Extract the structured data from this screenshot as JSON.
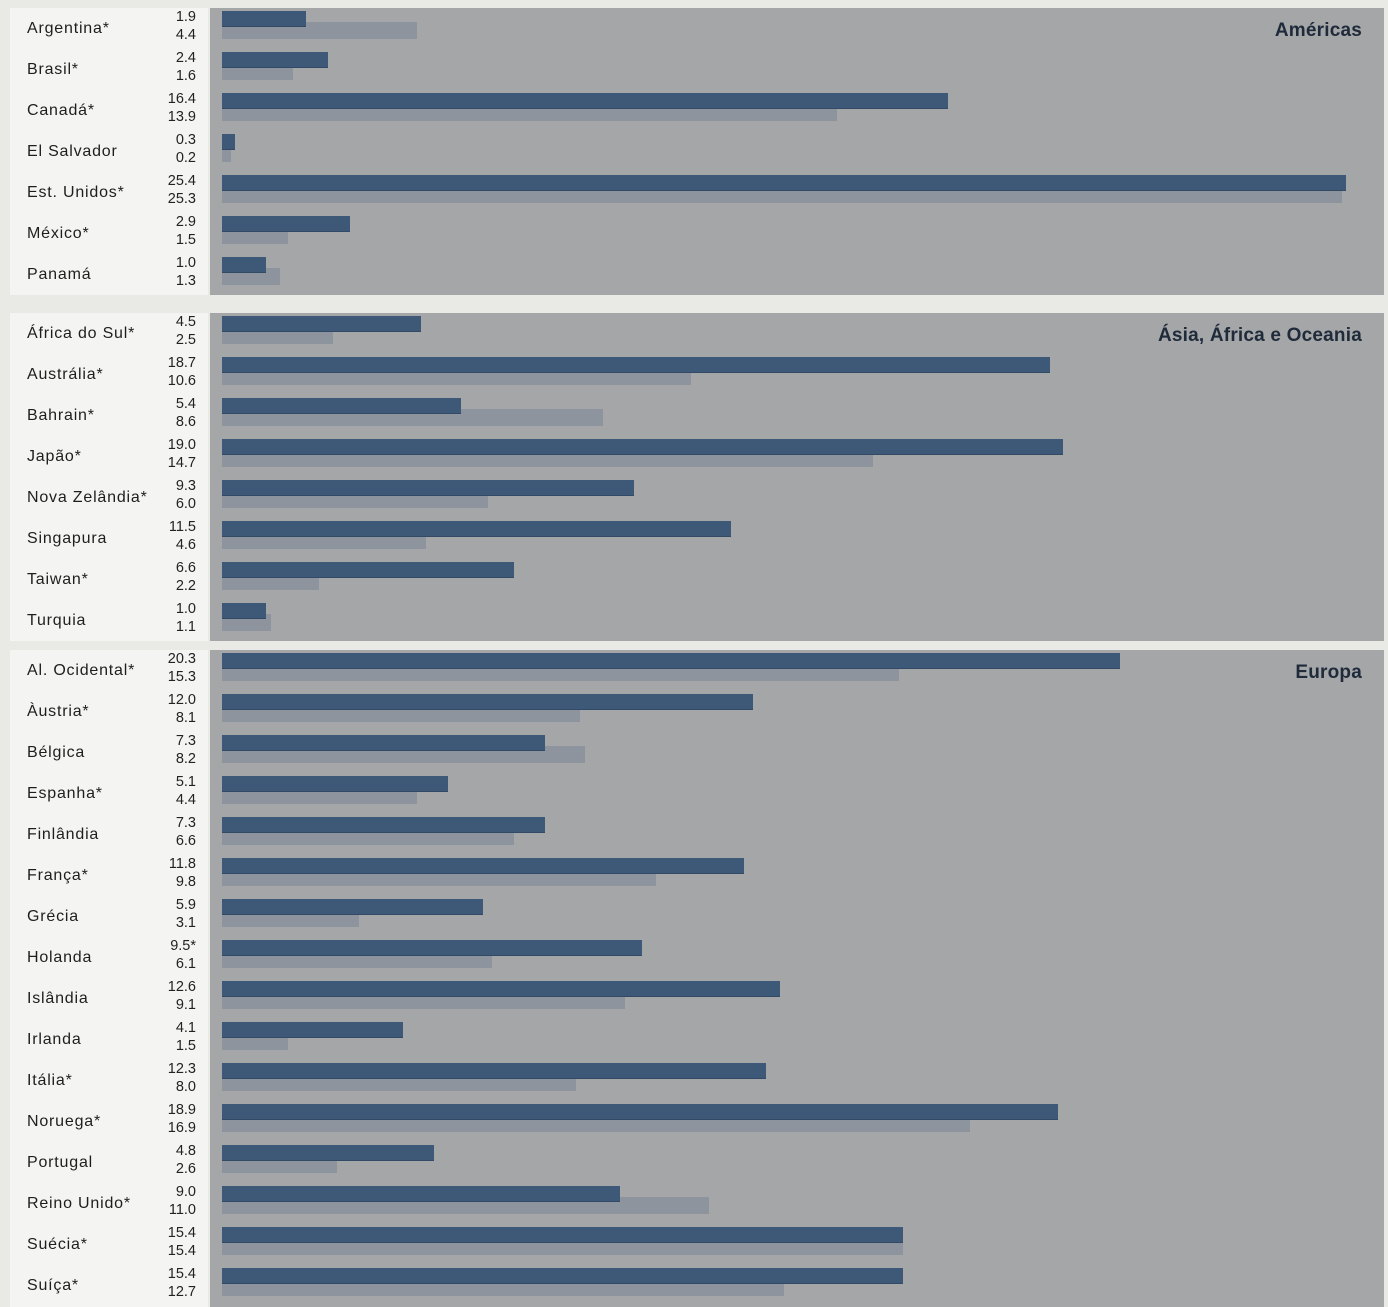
{
  "chart_data": {
    "type": "bar",
    "orientation": "horizontal",
    "grid": false,
    "xlim": [
      0,
      25.4
    ],
    "colors": {
      "series_1": "#3e5878",
      "series_2": "#8e949d",
      "plot_background": "#a4a6a7",
      "label_background": "#f4f4f2"
    },
    "groups": [
      {
        "title": "Américas",
        "rows": [
          {
            "country": "Argentina*",
            "v1": 1.9,
            "v2": 4.4,
            "v1_label": "1.9",
            "v2_label": "4.4"
          },
          {
            "country": "Brasil*",
            "v1": 2.4,
            "v2": 1.6,
            "v1_label": "2.4",
            "v2_label": "1.6"
          },
          {
            "country": "Canadá*",
            "v1": 16.4,
            "v2": 13.9,
            "v1_label": "16.4",
            "v2_label": "13.9"
          },
          {
            "country": "El Salvador",
            "v1": 0.3,
            "v2": 0.2,
            "v1_label": "0.3",
            "v2_label": "0.2"
          },
          {
            "country": "Est. Unidos*",
            "v1": 25.4,
            "v2": 25.3,
            "v1_label": "25.4",
            "v2_label": "25.3"
          },
          {
            "country": "México*",
            "v1": 2.9,
            "v2": 1.5,
            "v1_label": "2.9",
            "v2_label": "1.5"
          },
          {
            "country": "Panamá",
            "v1": 1.0,
            "v2": 1.3,
            "v1_label": "1.0",
            "v2_label": "1.3"
          }
        ]
      },
      {
        "title": "Ásia, África e Oceania",
        "rows": [
          {
            "country": "África do Sul*",
            "v1": 4.5,
            "v2": 2.5,
            "v1_label": "4.5",
            "v2_label": "2.5"
          },
          {
            "country": "Austrália*",
            "v1": 18.7,
            "v2": 10.6,
            "v1_label": "18.7",
            "v2_label": "10.6"
          },
          {
            "country": "Bahrain*",
            "v1": 5.4,
            "v2": 8.6,
            "v1_label": "5.4",
            "v2_label": "8.6"
          },
          {
            "country": "Japão*",
            "v1": 19.0,
            "v2": 14.7,
            "v1_label": "19.0",
            "v2_label": "14.7"
          },
          {
            "country": "Nova Zelândia*",
            "v1": 9.3,
            "v2": 6.0,
            "v1_label": "9.3",
            "v2_label": "6.0"
          },
          {
            "country": "Singapura",
            "v1": 11.5,
            "v2": 4.6,
            "v1_label": "11.5",
            "v2_label": "4.6"
          },
          {
            "country": "Taiwan*",
            "v1": 6.6,
            "v2": 2.2,
            "v1_label": "6.6",
            "v2_label": "2.2"
          },
          {
            "country": "Turquia",
            "v1": 1.0,
            "v2": 1.1,
            "v1_label": "1.0",
            "v2_label": "1.1"
          }
        ]
      },
      {
        "title": "Europa",
        "rows": [
          {
            "country": "Al. Ocidental*",
            "v1": 20.3,
            "v2": 15.3,
            "v1_label": "20.3",
            "v2_label": "15.3"
          },
          {
            "country": "Àustria*",
            "v1": 12.0,
            "v2": 8.1,
            "v1_label": "12.0",
            "v2_label": "8.1"
          },
          {
            "country": "Bélgica",
            "v1": 7.3,
            "v2": 8.2,
            "v1_label": "7.3",
            "v2_label": "8.2"
          },
          {
            "country": "Espanha*",
            "v1": 5.1,
            "v2": 4.4,
            "v1_label": "5.1",
            "v2_label": "4.4"
          },
          {
            "country": "Finlândia",
            "v1": 7.3,
            "v2": 6.6,
            "v1_label": "7.3",
            "v2_label": "6.6"
          },
          {
            "country": "França*",
            "v1": 11.8,
            "v2": 9.8,
            "v1_label": "11.8",
            "v2_label": "9.8"
          },
          {
            "country": "Grécia",
            "v1": 5.9,
            "v2": 3.1,
            "v1_label": "5.9",
            "v2_label": "3.1"
          },
          {
            "country": "Holanda",
            "v1": 9.5,
            "v2": 6.1,
            "v1_label": "9.5*",
            "v2_label": "6.1"
          },
          {
            "country": "Islândia",
            "v1": 12.6,
            "v2": 9.1,
            "v1_label": "12.6",
            "v2_label": "9.1"
          },
          {
            "country": "Irlanda",
            "v1": 4.1,
            "v2": 1.5,
            "v1_label": "4.1",
            "v2_label": "1.5"
          },
          {
            "country": "Itália*",
            "v1": 12.3,
            "v2": 8.0,
            "v1_label": "12.3",
            "v2_label": "8.0"
          },
          {
            "country": "Noruega*",
            "v1": 18.9,
            "v2": 16.9,
            "v1_label": "18.9",
            "v2_label": "16.9"
          },
          {
            "country": "Portugal",
            "v1": 4.8,
            "v2": 2.6,
            "v1_label": "4.8",
            "v2_label": "2.6"
          },
          {
            "country": "Reino Unido*",
            "v1": 9.0,
            "v2": 11.0,
            "v1_label": "9.0",
            "v2_label": "11.0"
          },
          {
            "country": "Suécia*",
            "v1": 15.4,
            "v2": 15.4,
            "v1_label": "15.4",
            "v2_label": "15.4"
          },
          {
            "country": "Suíça*",
            "v1": 15.4,
            "v2": 12.7,
            "v1_label": "15.4",
            "v2_label": "12.7"
          }
        ]
      }
    ]
  }
}
